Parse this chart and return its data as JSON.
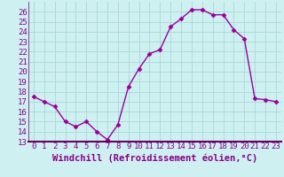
{
  "x": [
    0,
    1,
    2,
    3,
    4,
    5,
    6,
    7,
    8,
    9,
    10,
    11,
    12,
    13,
    14,
    15,
    16,
    17,
    18,
    19,
    20,
    21,
    22,
    23
  ],
  "y": [
    17.5,
    17.0,
    16.5,
    15.0,
    14.5,
    15.0,
    14.0,
    13.2,
    14.7,
    18.5,
    20.3,
    21.8,
    22.2,
    24.5,
    25.3,
    26.2,
    26.2,
    25.7,
    25.7,
    24.2,
    23.3,
    17.3,
    17.2,
    17.0
  ],
  "line_color": "#990099",
  "marker": "D",
  "marker_size": 2.5,
  "bg_color": "#cff0f0",
  "grid_color": "#a8d8d8",
  "xlabel": "Windchill (Refroidissement éolien,°C)",
  "ylim": [
    13,
    27
  ],
  "xlim": [
    -0.5,
    23.5
  ],
  "yticks": [
    13,
    14,
    15,
    16,
    17,
    18,
    19,
    20,
    21,
    22,
    23,
    24,
    25,
    26
  ],
  "xticks": [
    0,
    1,
    2,
    3,
    4,
    5,
    6,
    7,
    8,
    9,
    10,
    11,
    12,
    13,
    14,
    15,
    16,
    17,
    18,
    19,
    20,
    21,
    22,
    23
  ],
  "axis_color": "#880088",
  "spine_color": "#660066",
  "tick_label_fontsize": 6.5,
  "xlabel_fontsize": 7.5,
  "bottom_line_color": "#660066"
}
